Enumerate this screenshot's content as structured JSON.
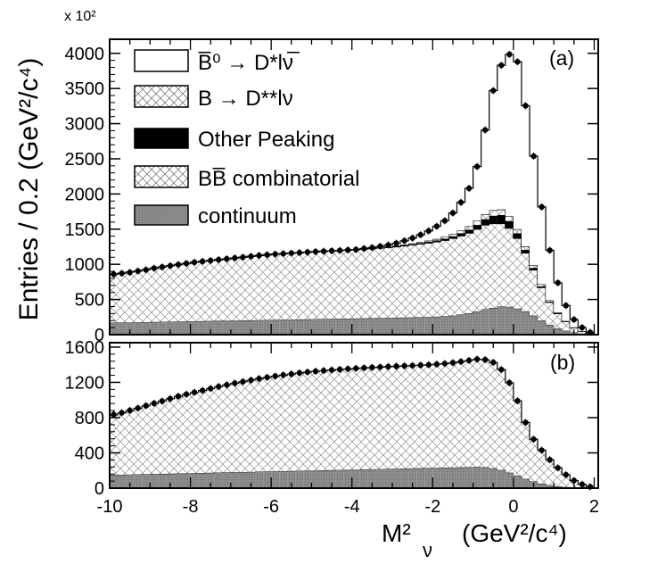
{
  "figure": {
    "ylabel": "Entries / 0.2 (GeV²/c⁴)",
    "scale_note": "x 10²",
    "xlabel_main": "M²",
    "xlabel_sub": "ν",
    "xlabel_units": "(GeV²/c⁴)"
  },
  "chart_data": [
    {
      "type": "bar",
      "panel": "(a)",
      "stacked": true,
      "xlim": [
        -10,
        2.1
      ],
      "ylim": [
        0,
        4200
      ],
      "bin_width": 0.2,
      "x": [
        -10,
        -9.8,
        -9.6,
        -9.4,
        -9.2,
        -9,
        -8.8,
        -8.6,
        -8.4,
        -8.2,
        -8,
        -7.8,
        -7.6,
        -7.4,
        -7.2,
        -7,
        -6.8,
        -6.6,
        -6.4,
        -6.2,
        -6,
        -5.8,
        -5.6,
        -5.4,
        -5.2,
        -5,
        -4.8,
        -4.6,
        -4.4,
        -4.2,
        -4,
        -3.8,
        -3.6,
        -3.4,
        -3.2,
        -3,
        -2.8,
        -2.6,
        -2.4,
        -2.2,
        -2,
        -1.8,
        -1.6,
        -1.4,
        -1.2,
        -1,
        -0.8,
        -0.6,
        -0.4,
        -0.2,
        0,
        0.2,
        0.4,
        0.6,
        0.8,
        1,
        1.2,
        1.4,
        1.6,
        1.8
      ],
      "yticks": [
        "0",
        "500",
        "1000",
        "1500",
        "2000",
        "2500",
        "3000",
        "3500",
        "4000"
      ],
      "xticks": [
        "-10",
        "-8",
        "-6",
        "-4",
        "-2",
        "0",
        "2"
      ],
      "legend": [
        {
          "label": "B̅⁰ → D*lν̅",
          "style": "open"
        },
        {
          "label": "B → D**lν",
          "style": "crosshatch"
        },
        {
          "label": "Other Peaking",
          "style": "black"
        },
        {
          "label": "BB̅ combinatorial",
          "style": "crosshatch"
        },
        {
          "label": "continuum",
          "style": "grey"
        }
      ],
      "series": [
        {
          "name": "continuum",
          "values": [
            170,
            172,
            174,
            176,
            178,
            180,
            182,
            184,
            186,
            188,
            190,
            192,
            194,
            196,
            198,
            200,
            202,
            204,
            206,
            208,
            210,
            212,
            214,
            216,
            218,
            220,
            222,
            224,
            226,
            228,
            230,
            232,
            234,
            236,
            238,
            240,
            243,
            246,
            249,
            252,
            256,
            262,
            270,
            285,
            305,
            330,
            360,
            380,
            400,
            395,
            370,
            330,
            270,
            200,
            140,
            90,
            55,
            30,
            15,
            8
          ]
        },
        {
          "name": "BB combinatorial",
          "values": [
            690,
            700,
            715,
            730,
            745,
            765,
            780,
            795,
            810,
            825,
            840,
            850,
            860,
            870,
            880,
            890,
            900,
            910,
            920,
            928,
            935,
            940,
            945,
            950,
            955,
            960,
            964,
            968,
            972,
            976,
            980,
            985,
            990,
            996,
            1002,
            1010,
            1020,
            1030,
            1040,
            1052,
            1065,
            1080,
            1100,
            1120,
            1140,
            1170,
            1200,
            1200,
            1180,
            1120,
            1000,
            830,
            650,
            470,
            320,
            210,
            130,
            70,
            35,
            15
          ]
        },
        {
          "name": "Other Peaking",
          "values": [
            0,
            0,
            0,
            0,
            0,
            0,
            0,
            0,
            0,
            0,
            0,
            0,
            0,
            0,
            0,
            0,
            0,
            0,
            0,
            0,
            0,
            0,
            0,
            0,
            0,
            0,
            0,
            0,
            0,
            0,
            0,
            2,
            3,
            4,
            5,
            6,
            8,
            10,
            12,
            15,
            18,
            22,
            28,
            36,
            46,
            60,
            80,
            110,
            120,
            100,
            70,
            45,
            28,
            16,
            9,
            5,
            3,
            1,
            0,
            0
          ]
        },
        {
          "name": "B to D** l nu",
          "values": [
            0,
            0,
            0,
            0,
            0,
            0,
            0,
            0,
            0,
            0,
            0,
            0,
            0,
            0,
            0,
            0,
            0,
            0,
            0,
            0,
            0,
            0,
            0,
            0,
            0,
            0,
            0,
            0,
            0,
            0,
            0,
            2,
            3,
            4,
            6,
            8,
            10,
            12,
            15,
            18,
            22,
            26,
            32,
            40,
            50,
            60,
            70,
            80,
            80,
            70,
            60,
            50,
            40,
            30,
            20,
            12,
            6,
            3,
            1,
            0
          ]
        },
        {
          "name": "B0bar to D* l nu",
          "values": [
            0,
            0,
            0,
            0,
            0,
            0,
            0,
            0,
            0,
            0,
            0,
            0,
            0,
            0,
            0,
            0,
            0,
            0,
            0,
            0,
            0,
            0,
            0,
            0,
            0,
            0,
            0,
            0,
            0,
            0,
            0,
            4,
            8,
            14,
            24,
            36,
            54,
            76,
            104,
            138,
            180,
            230,
            300,
            400,
            540,
            770,
            1200,
            1700,
            2050,
            2300,
            2380,
            2000,
            1550,
            1100,
            710,
            420,
            220,
            110,
            50,
            10
          ]
        }
      ],
      "data_points": [
        860,
        872,
        885,
        905,
        922,
        945,
        962,
        980,
        996,
        1013,
        1030,
        1042,
        1054,
        1066,
        1078,
        1090,
        1102,
        1114,
        1126,
        1136,
        1145,
        1152,
        1159,
        1166,
        1173,
        1180,
        1186,
        1192,
        1198,
        1204,
        1210,
        1225,
        1238,
        1256,
        1275,
        1300,
        1335,
        1374,
        1420,
        1475,
        1541,
        1620,
        1730,
        1881,
        2081,
        2390,
        2910,
        3470,
        3830,
        3985,
        3880,
        3255,
        2538,
        1816,
        1199,
        737,
        414,
        214,
        101,
        33
      ]
    },
    {
      "type": "bar",
      "panel": "(b)",
      "stacked": true,
      "xlim": [
        -10,
        2.1
      ],
      "ylim": [
        0,
        1650
      ],
      "bin_width": 0.2,
      "yticks": [
        "0",
        "400",
        "800",
        "1200",
        "1600"
      ],
      "xticks": [
        "-10",
        "-8",
        "-6",
        "-4",
        "-2",
        "0",
        "2"
      ],
      "series": [
        {
          "name": "continuum",
          "values": [
            150,
            152,
            154,
            156,
            158,
            160,
            162,
            164,
            166,
            168,
            170,
            172,
            174,
            176,
            178,
            180,
            182,
            184,
            186,
            188,
            190,
            192,
            194,
            196,
            198,
            200,
            202,
            204,
            206,
            208,
            210,
            212,
            214,
            216,
            218,
            220,
            222,
            224,
            226,
            228,
            230,
            232,
            234,
            236,
            238,
            240,
            236,
            225,
            205,
            175,
            140,
            105,
            75,
            50,
            32,
            20,
            12,
            6,
            3,
            1
          ]
        },
        {
          "name": "BB combinatorial",
          "values": [
            680,
            700,
            725,
            750,
            775,
            800,
            825,
            850,
            874,
            895,
            915,
            935,
            955,
            975,
            993,
            1010,
            1025,
            1040,
            1055,
            1068,
            1080,
            1090,
            1100,
            1110,
            1118,
            1125,
            1130,
            1135,
            1140,
            1144,
            1148,
            1151,
            1154,
            1157,
            1160,
            1162,
            1164,
            1166,
            1168,
            1170,
            1175,
            1180,
            1188,
            1198,
            1210,
            1222,
            1220,
            1200,
            1140,
            1020,
            850,
            640,
            480,
            380,
            290,
            210,
            140,
            80,
            40,
            15
          ]
        }
      ],
      "data_points": [
        835,
        855,
        882,
        908,
        935,
        962,
        988,
        1015,
        1042,
        1065,
        1087,
        1108,
        1130,
        1152,
        1172,
        1191,
        1208,
        1225,
        1242,
        1257,
        1271,
        1283,
        1295,
        1307,
        1317,
        1326,
        1333,
        1340,
        1347,
        1353,
        1359,
        1364,
        1369,
        1374,
        1379,
        1383,
        1387,
        1391,
        1395,
        1399,
        1406,
        1413,
        1423,
        1435,
        1449,
        1463,
        1457,
        1426,
        1345,
        1195,
        990,
        745,
        555,
        430,
        322,
        230,
        152,
        86,
        43,
        16
      ]
    }
  ]
}
